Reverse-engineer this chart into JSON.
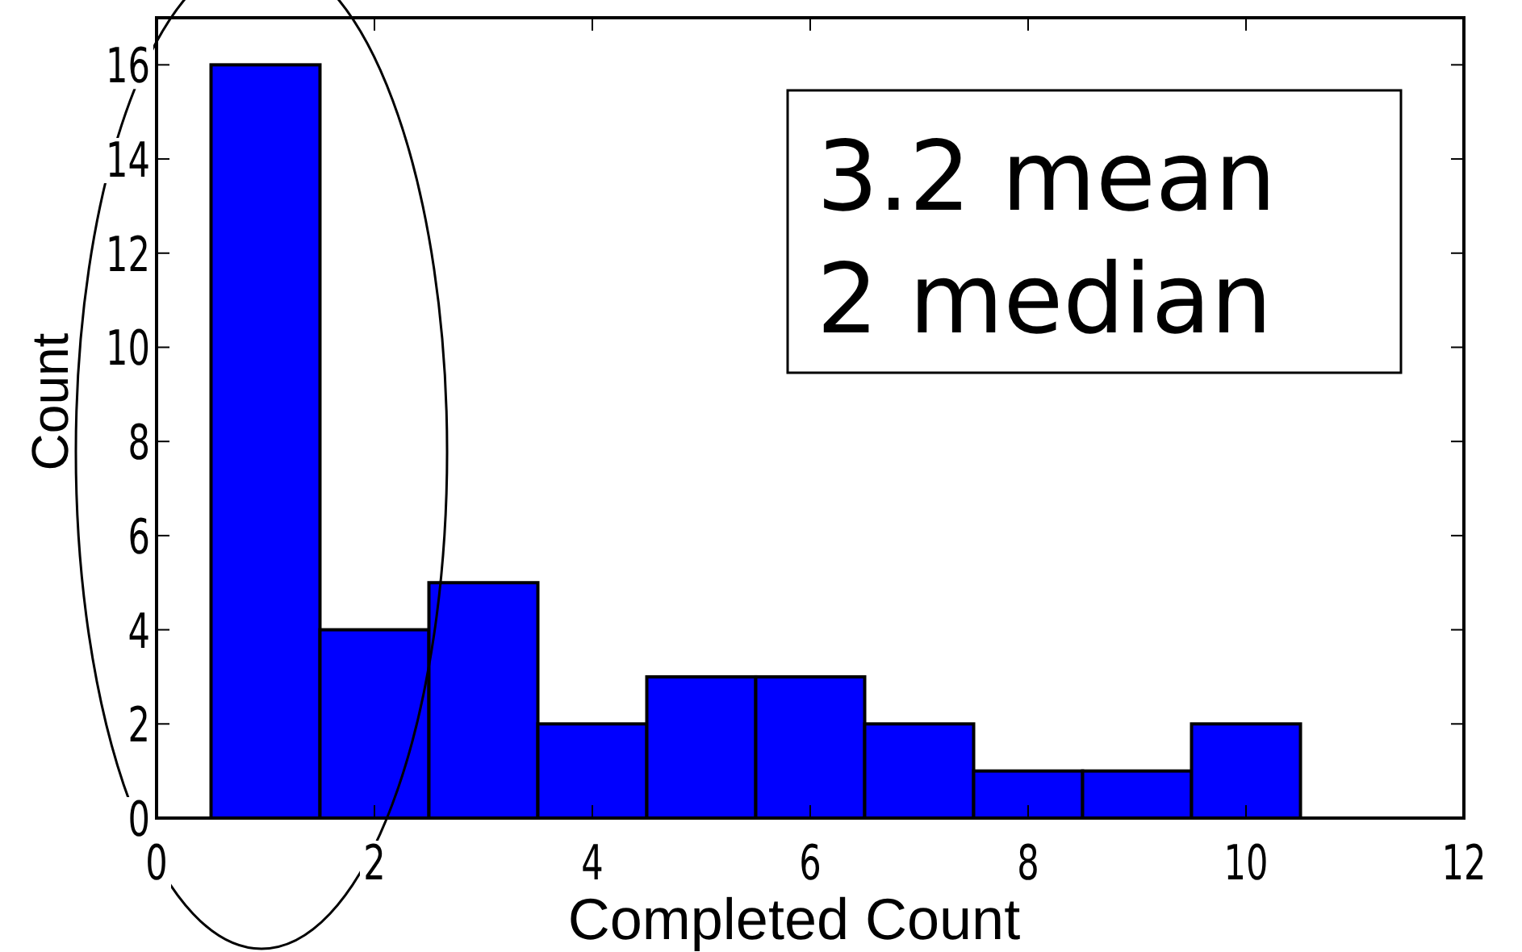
{
  "chart_data": {
    "type": "histogram",
    "xlabel": "Completed Count",
    "ylabel": "Count",
    "bins": [
      0.5,
      1.5,
      2.5,
      3.5,
      4.5,
      5.5,
      6.5,
      7.5,
      8.5,
      9.5,
      10.5
    ],
    "values": [
      16,
      4,
      5,
      2,
      3,
      3,
      2,
      1,
      1,
      2
    ],
    "color": "#0000ff",
    "xlim": [
      0,
      12
    ],
    "xticks": [
      0,
      2,
      4,
      6,
      8,
      10,
      12
    ],
    "ylim": [
      0,
      17
    ],
    "yticks": [
      0,
      2,
      4,
      6,
      8,
      10,
      12,
      14,
      16
    ],
    "grid": false,
    "annotations": [
      "3.2 mean",
      "2 median"
    ]
  }
}
